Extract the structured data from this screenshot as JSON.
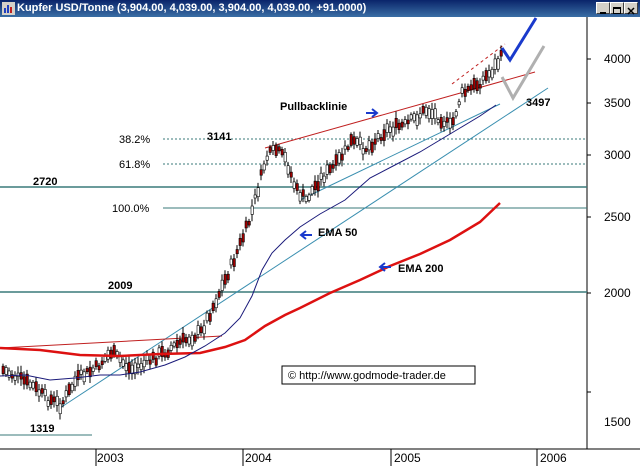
{
  "window": {
    "title": "Kupfer USD/Tonne (3,904.00, 4,039.00, 3,904.00, 4,039.00, +91.0000)"
  },
  "chart_data": {
    "type": "candlestick",
    "title": "Kupfer USD/Tonne (3,904.00, 4,039.00, 3,904.00, 4,039.00, +91.0000)",
    "y_scale": "log",
    "ylim": [
      1300,
      4400
    ],
    "y_ticks": [
      "4000",
      "3500",
      "3000",
      "2500",
      "2000",
      "1500"
    ],
    "x_ticks": [
      "2003",
      "2004",
      "2005",
      "2006"
    ],
    "horizontal_levels": [
      {
        "label": "2720",
        "value": 2720
      },
      {
        "label": "2009",
        "value": 2009
      },
      {
        "label": "1319",
        "value": 1319
      }
    ],
    "fibonacci": [
      {
        "label": "38.2%",
        "value": 3141
      },
      {
        "label": "61.8%",
        "value": 2930
      },
      {
        "label": "100.0%",
        "value": 2570
      }
    ],
    "annotations": {
      "high_label": "3141",
      "pullback_label": "Pullbacklinie",
      "ema50_label": "EMA 50",
      "ema200_label": "EMA 200",
      "target_label": "3497",
      "copyright": "© http://www.godmode-trader.de"
    },
    "series": [
      {
        "name": "EMA 50",
        "color": "#1a1a7a"
      },
      {
        "name": "EMA 200",
        "color": "#dd1111"
      }
    ],
    "colors": {
      "up_candle": "#ffffff",
      "down_candle": "#a00000",
      "level_line": "#3a7a7a",
      "trend_line": "#3a8fb0",
      "blue_arrow": "#1a3acc"
    },
    "grid": false
  }
}
